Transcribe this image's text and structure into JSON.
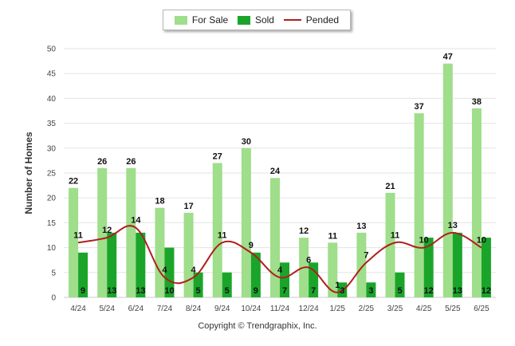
{
  "chart_data": {
    "type": "bar",
    "categories": [
      "4/24",
      "5/24",
      "6/24",
      "7/24",
      "8/24",
      "9/24",
      "10/24",
      "11/24",
      "12/24",
      "1/25",
      "2/25",
      "3/25",
      "4/25",
      "5/25",
      "6/25"
    ],
    "series": [
      {
        "name": "For Sale",
        "type": "bar",
        "color": "#9fde8a",
        "values": [
          22,
          26,
          26,
          18,
          17,
          27,
          30,
          24,
          12,
          11,
          13,
          21,
          37,
          47,
          38
        ]
      },
      {
        "name": "Sold",
        "type": "bar",
        "color": "#1aa52a",
        "values": [
          9,
          13,
          13,
          10,
          5,
          5,
          9,
          7,
          7,
          3,
          3,
          5,
          12,
          13,
          12
        ]
      },
      {
        "name": "Pended",
        "type": "line",
        "color": "#b01e1e",
        "values": [
          11,
          12,
          14,
          4,
          4,
          11,
          9,
          4,
          6,
          1,
          7,
          11,
          10,
          13,
          10
        ]
      }
    ],
    "ylabel": "Number of Homes",
    "ylim": [
      0,
      50
    ],
    "yticks": [
      0,
      5,
      10,
      15,
      20,
      25,
      30,
      35,
      40,
      45,
      50
    ],
    "grid": true,
    "legend": "top-center"
  },
  "legend": {
    "for_sale": "For Sale",
    "sold": "Sold",
    "pended": "Pended"
  },
  "footer": {
    "copyright": "Copyright © Trendgraphix, Inc."
  }
}
